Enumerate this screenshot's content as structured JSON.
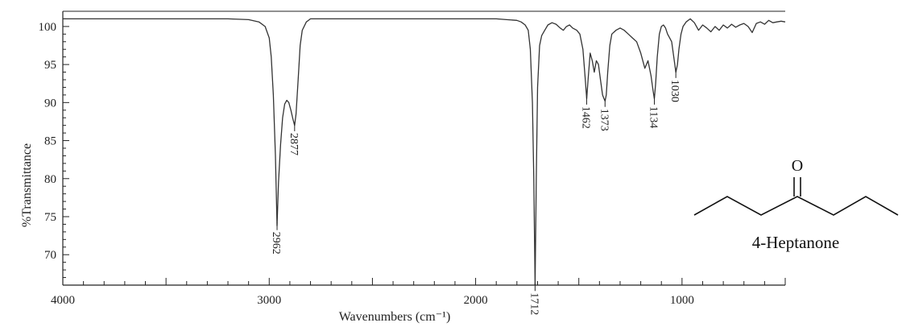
{
  "chart_data": {
    "type": "line",
    "xlabel": "Wavenumbers (cm⁻¹)",
    "ylabel": "%Transmittance",
    "xlim": [
      4000,
      500
    ],
    "ylim": [
      66,
      102
    ],
    "x_tick_labels": [
      {
        "value": 4000,
        "label": "4000"
      },
      {
        "value": 3000,
        "label": "3000"
      },
      {
        "value": 2000,
        "label": "2000"
      },
      {
        "value": 1000,
        "label": "1000"
      }
    ],
    "y_tick_labels": [
      {
        "value": 100,
        "label": "100"
      },
      {
        "value": 95,
        "label": "95"
      },
      {
        "value": 90,
        "label": "90"
      },
      {
        "value": 85,
        "label": "85"
      },
      {
        "value": 80,
        "label": "80"
      },
      {
        "value": 75,
        "label": "75"
      },
      {
        "value": 70,
        "label": "70"
      }
    ],
    "grid": false,
    "series": [
      {
        "color": "#333333",
        "x": [
          4000,
          3800,
          3600,
          3400,
          3200,
          3100,
          3050,
          3020,
          3000,
          2990,
          2980,
          2970,
          2962,
          2955,
          2945,
          2935,
          2925,
          2915,
          2905,
          2895,
          2885,
          2877,
          2870,
          2860,
          2850,
          2840,
          2820,
          2800,
          2750,
          2600,
          2400,
          2200,
          2000,
          1900,
          1850,
          1800,
          1780,
          1760,
          1745,
          1735,
          1725,
          1718,
          1712,
          1706,
          1700,
          1690,
          1680,
          1665,
          1650,
          1630,
          1610,
          1590,
          1575,
          1560,
          1545,
          1530,
          1510,
          1495,
          1480,
          1470,
          1462,
          1455,
          1445,
          1435,
          1425,
          1415,
          1405,
          1395,
          1385,
          1378,
          1373,
          1367,
          1360,
          1350,
          1340,
          1320,
          1300,
          1280,
          1260,
          1240,
          1220,
          1200,
          1180,
          1165,
          1150,
          1140,
          1134,
          1128,
          1120,
          1110,
          1100,
          1090,
          1080,
          1070,
          1060,
          1050,
          1040,
          1030,
          1022,
          1015,
          1005,
          995,
          980,
          960,
          940,
          920,
          900,
          880,
          860,
          840,
          820,
          800,
          780,
          760,
          740,
          720,
          700,
          680,
          660,
          640,
          620,
          600,
          580,
          560,
          540,
          520,
          500
        ],
        "y": [
          101.0,
          101.0,
          101.0,
          101.0,
          101.0,
          100.9,
          100.6,
          100.0,
          98.5,
          96.0,
          91.0,
          83.0,
          73.8,
          79.5,
          84.5,
          88.0,
          89.8,
          90.3,
          90.0,
          89.0,
          87.8,
          87.0,
          88.5,
          93.0,
          97.5,
          99.5,
          100.6,
          101.0,
          101.0,
          101.0,
          101.0,
          101.0,
          101.0,
          101.0,
          100.9,
          100.8,
          100.6,
          100.2,
          99.5,
          97.0,
          90.0,
          80.0,
          66.0,
          80.0,
          92.0,
          97.5,
          98.8,
          99.5,
          100.2,
          100.5,
          100.3,
          99.8,
          99.5,
          100.0,
          100.2,
          99.8,
          99.5,
          99.0,
          97.0,
          93.5,
          90.5,
          93.0,
          96.5,
          95.5,
          94.0,
          95.5,
          95.0,
          93.0,
          91.0,
          90.5,
          90.2,
          91.0,
          94.0,
          97.5,
          99.0,
          99.5,
          99.8,
          99.5,
          99.0,
          98.5,
          98.0,
          96.5,
          94.5,
          95.5,
          93.5,
          91.5,
          90.5,
          92.5,
          96.0,
          99.0,
          100.0,
          100.2,
          99.8,
          99.0,
          98.5,
          98.0,
          96.0,
          94.0,
          95.0,
          97.0,
          99.0,
          100.0,
          100.6,
          101.0,
          100.5,
          99.5,
          100.2,
          99.8,
          99.3,
          100.0,
          99.5,
          100.2,
          99.8,
          100.3,
          99.9,
          100.2,
          100.4,
          100.0,
          99.2,
          100.4,
          100.6,
          100.3,
          100.8,
          100.5,
          100.6,
          100.7,
          100.6
        ]
      }
    ],
    "annotations": [
      {
        "x": 2962,
        "y": 73.8,
        "text": "2962",
        "label_top": 74.5
      },
      {
        "x": 2877,
        "y": 87.0,
        "text": "2877",
        "label_top": 87.5
      },
      {
        "x": 1712,
        "y": 66.0,
        "text": "1712",
        "label_top": 66.5
      },
      {
        "x": 1462,
        "y": 90.5,
        "text": "1462",
        "label_top": 91.0
      },
      {
        "x": 1373,
        "y": 90.2,
        "text": "1373",
        "label_top": 90.7
      },
      {
        "x": 1134,
        "y": 90.5,
        "text": "1134",
        "label_top": 91.0
      },
      {
        "x": 1030,
        "y": 94.0,
        "text": "1030",
        "label_top": 94.5
      }
    ]
  },
  "molecule": {
    "name": "4-Heptanone",
    "carbonyl_atom": "O"
  }
}
